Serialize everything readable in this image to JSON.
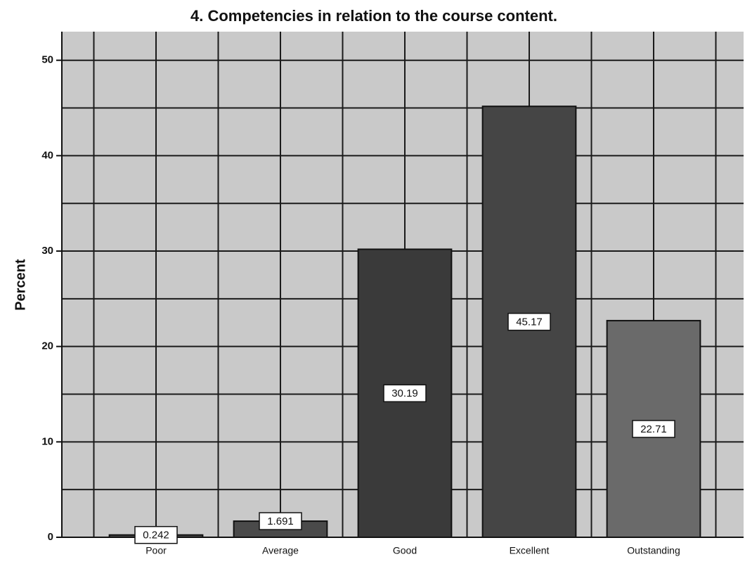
{
  "chart_data": {
    "type": "bar",
    "title": "4. Competencies in relation to the course content.",
    "y_label": "Percent",
    "categories": [
      "Poor",
      "Average",
      "Good",
      "Excellent",
      "Outstanding"
    ],
    "values": [
      0.242,
      1.691,
      30.19,
      45.17,
      22.71
    ],
    "colors": [
      "#4a4a4a",
      "#4a4a4a",
      "#3a3a3a",
      "#454545",
      "#6a6a6a"
    ],
    "ylim": [
      0,
      53
    ],
    "yticks": [
      0,
      10,
      20,
      30,
      40,
      50
    ],
    "grid": true
  }
}
